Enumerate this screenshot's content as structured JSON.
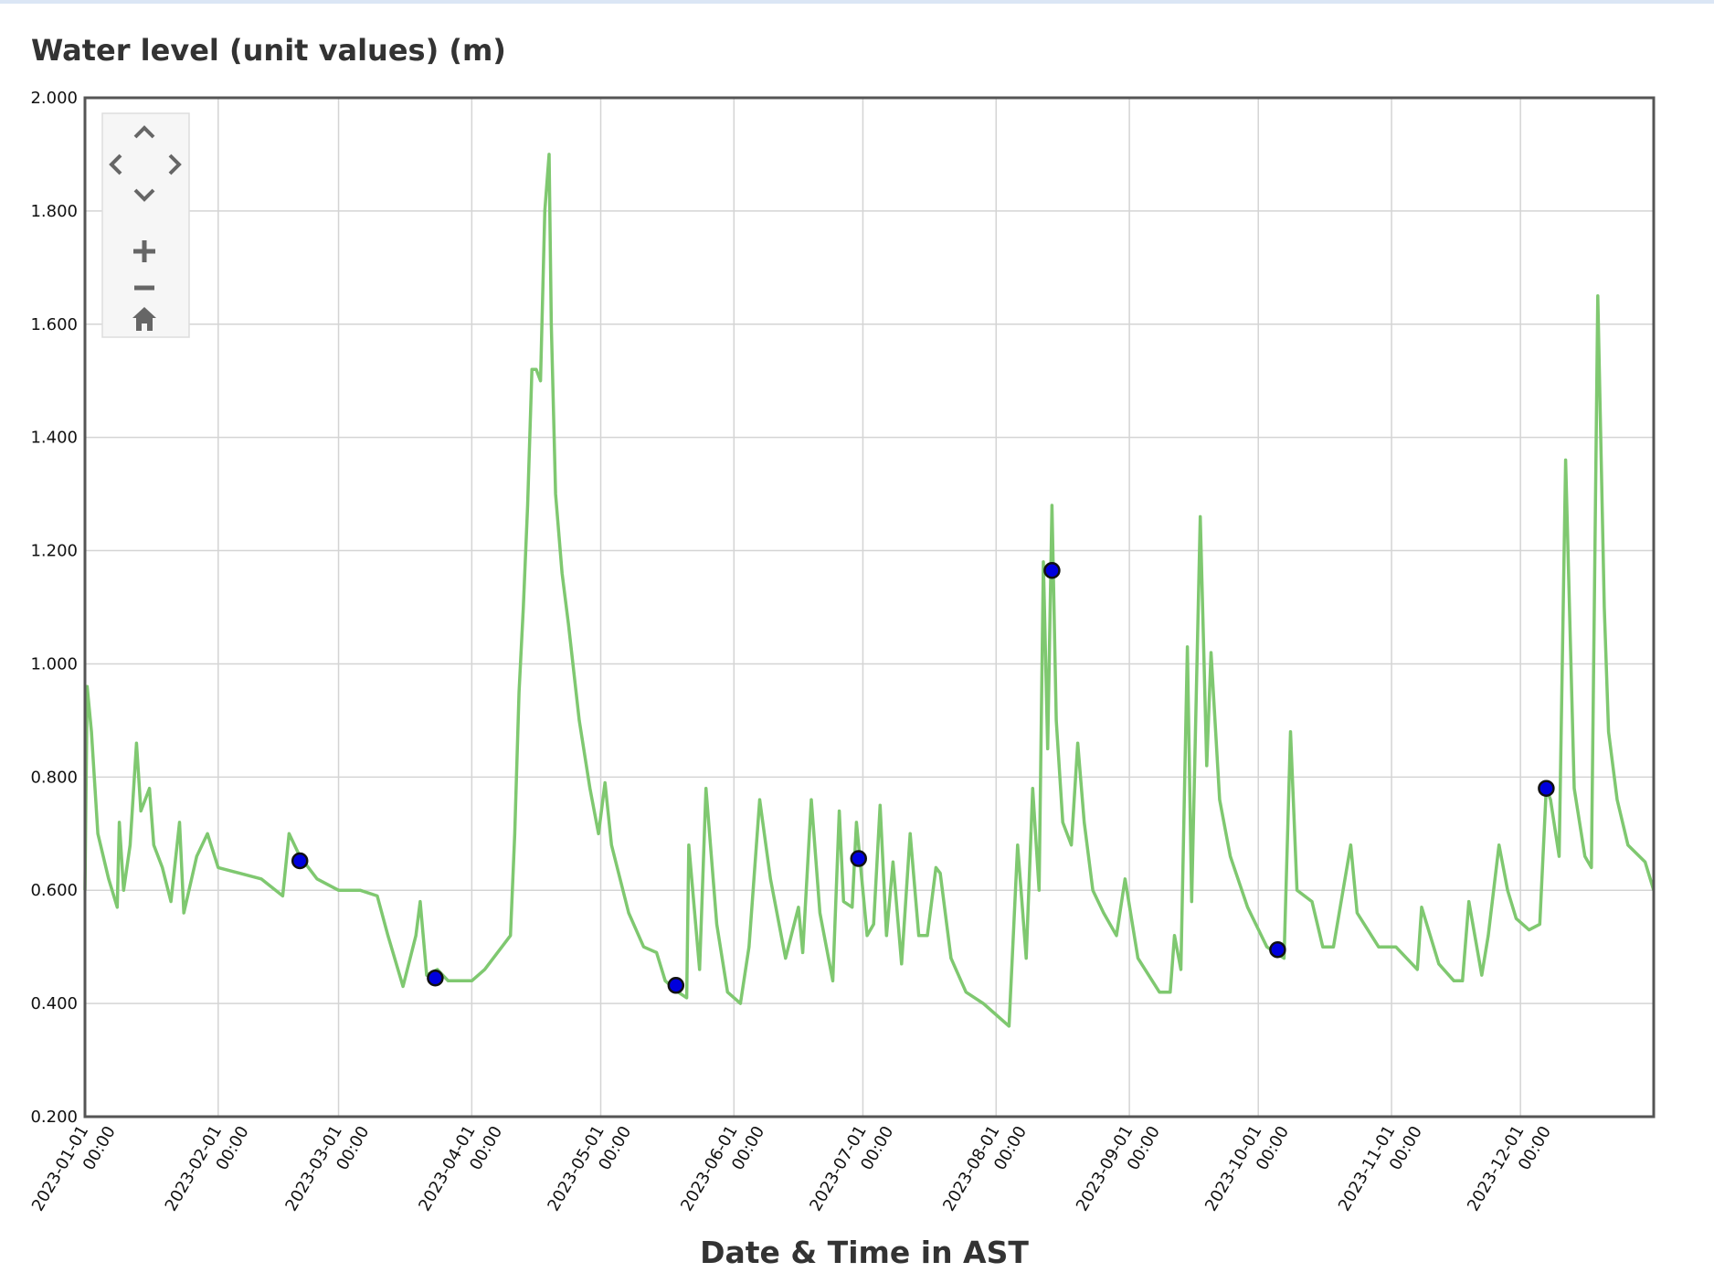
{
  "chart_data": {
    "type": "line",
    "title": "Water level (unit values) (m)",
    "x_label": "Date & Time in AST",
    "xlim": [
      "2023-01-01 00:00",
      "2024-01-01 00:00"
    ],
    "xticks": [
      "2023-01-01 00:00",
      "2023-02-01 00:00",
      "2023-03-01 00:00",
      "2023-04-01 00:00",
      "2023-05-01 00:00",
      "2023-06-01 00:00",
      "2023-07-01 00:00",
      "2023-08-01 00:00",
      "2023-09-01 00:00",
      "2023-10-01 00:00",
      "2023-11-01 00:00",
      "2023-12-01 00:00"
    ],
    "ylim": [
      0.2,
      2.0
    ],
    "yticks": [
      {
        "value": 0.2,
        "label": "0.200"
      },
      {
        "value": 0.4,
        "label": "0.400"
      },
      {
        "value": 0.6,
        "label": "0.600"
      },
      {
        "value": 0.8,
        "label": "0.800"
      },
      {
        "value": 1.0,
        "label": "1.000"
      },
      {
        "value": 1.2,
        "label": "1.200"
      },
      {
        "value": 1.4,
        "label": "1.400"
      },
      {
        "value": 1.6,
        "label": "1.600"
      },
      {
        "value": 1.8,
        "label": "1.800"
      },
      {
        "value": 2.0,
        "label": "2.000"
      }
    ],
    "grid": true,
    "series": [
      {
        "type": "line",
        "color": "#7fc870",
        "x": [
          "2023-01-01 00:00",
          "2023-01-01 12:00",
          "2023-01-02 12:00",
          "2023-01-04 00:00",
          "2023-01-06 12:00",
          "2023-01-08 12:00",
          "2023-01-09 00:00",
          "2023-01-10 00:00",
          "2023-01-11 12:00",
          "2023-01-13 00:00",
          "2023-01-14 00:00",
          "2023-01-16 00:00",
          "2023-01-17 00:00",
          "2023-01-19 00:00",
          "2023-01-21 00:00",
          "2023-01-23 00:00",
          "2023-01-24 00:00",
          "2023-01-27 00:00",
          "2023-01-29 12:00",
          "2023-02-01 00:00",
          "2023-02-06 00:00",
          "2023-02-11 00:00",
          "2023-02-16 00:00",
          "2023-02-17 12:00",
          "2023-02-20 00:00",
          "2023-02-24 00:00",
          "2023-03-01 00:00",
          "2023-03-06 00:00",
          "2023-03-10 00:00",
          "2023-03-12 12:00",
          "2023-03-16 00:00",
          "2023-03-19 00:00",
          "2023-03-20 00:00",
          "2023-03-21 12:00",
          "2023-03-24 00:00",
          "2023-03-26 12:00",
          "2023-03-29 00:00",
          "2023-04-01 00:00",
          "2023-04-04 00:00",
          "2023-04-08 00:00",
          "2023-04-10 00:00",
          "2023-04-11 00:00",
          "2023-04-12 00:00",
          "2023-04-13 00:00",
          "2023-04-14 00:00",
          "2023-04-15 00:00",
          "2023-04-16 00:00",
          "2023-04-17 00:00",
          "2023-04-18 00:00",
          "2023-04-19 00:00",
          "2023-04-19 12:00",
          "2023-04-20 12:00",
          "2023-04-22 00:00",
          "2023-04-23 12:00",
          "2023-04-26 00:00",
          "2023-04-28 12:00",
          "2023-04-30 12:00",
          "2023-05-02 00:00",
          "2023-05-03 12:00",
          "2023-05-07 12:00",
          "2023-05-11 00:00",
          "2023-05-14 00:00",
          "2023-05-16 00:00",
          "2023-05-19 00:00",
          "2023-05-21 00:00",
          "2023-05-21 12:00",
          "2023-05-24 00:00",
          "2023-05-25 12:00",
          "2023-05-28 00:00",
          "2023-05-30 12:00",
          "2023-06-02 12:00",
          "2023-06-04 12:00",
          "2023-06-07 00:00",
          "2023-06-09 12:00",
          "2023-06-13 00:00",
          "2023-06-16 00:00",
          "2023-06-17 00:00",
          "2023-06-19 00:00",
          "2023-06-21 00:00",
          "2023-06-24 00:00",
          "2023-06-25 12:00",
          "2023-06-26 12:00",
          "2023-06-28 12:00",
          "2023-06-29 12:00",
          "2023-07-02 00:00",
          "2023-07-03 12:00",
          "2023-07-05 00:00",
          "2023-07-06 12:00",
          "2023-07-08 00:00",
          "2023-07-10 00:00",
          "2023-07-12 00:00",
          "2023-07-14 00:00",
          "2023-07-16 00:00",
          "2023-07-18 00:00",
          "2023-07-19 00:00",
          "2023-07-21 12:00",
          "2023-07-25 00:00",
          "2023-07-29 00:00",
          "2023-08-01 00:00",
          "2023-08-04 00:00",
          "2023-08-06 00:00",
          "2023-08-08 00:00",
          "2023-08-09 12:00",
          "2023-08-11 00:00",
          "2023-08-12 00:00",
          "2023-08-13 00:00",
          "2023-08-14 00:00",
          "2023-08-15 00:00",
          "2023-08-16 12:00",
          "2023-08-18 12:00",
          "2023-08-20 00:00",
          "2023-08-21 12:00",
          "2023-08-23 12:00",
          "2023-08-26 00:00",
          "2023-08-29 00:00",
          "2023-08-31 00:00",
          "2023-09-03 00:00",
          "2023-09-08 00:00",
          "2023-09-10 12:00",
          "2023-09-11 12:00",
          "2023-09-13 00:00",
          "2023-09-14 12:00",
          "2023-09-15 12:00",
          "2023-09-17 12:00",
          "2023-09-19 00:00",
          "2023-09-20 00:00",
          "2023-09-22 00:00",
          "2023-09-24 12:00",
          "2023-09-28 12:00",
          "2023-10-03 00:00",
          "2023-10-07 00:00",
          "2023-10-08 12:00",
          "2023-10-10 00:00",
          "2023-10-13 12:00",
          "2023-10-16 00:00",
          "2023-10-18 12:00",
          "2023-10-22 12:00",
          "2023-10-24 00:00",
          "2023-10-29 00:00",
          "2023-11-02 00:00",
          "2023-11-07 00:00",
          "2023-11-08 00:00",
          "2023-11-12 00:00",
          "2023-11-15 12:00",
          "2023-11-17 12:00",
          "2023-11-19 00:00",
          "2023-11-22 00:00",
          "2023-11-23 12:00",
          "2023-11-26 00:00",
          "2023-11-28 00:00",
          "2023-11-30 00:00",
          "2023-12-03 00:00",
          "2023-12-05 12:00",
          "2023-12-07 00:00",
          "2023-12-08 00:00",
          "2023-12-10 00:00",
          "2023-12-11 12:00",
          "2023-12-13 12:00",
          "2023-12-16 00:00",
          "2023-12-17 12:00",
          "2023-12-19 00:00",
          "2023-12-20 12:00",
          "2023-12-21 12:00",
          "2023-12-23 12:00",
          "2023-12-26 00:00",
          "2023-12-30 00:00",
          "2024-01-01 00:00"
        ],
        "values": [
          0.6,
          0.96,
          0.88,
          0.7,
          0.62,
          0.57,
          0.72,
          0.6,
          0.68,
          0.86,
          0.74,
          0.78,
          0.68,
          0.64,
          0.58,
          0.72,
          0.56,
          0.66,
          0.7,
          0.64,
          0.63,
          0.62,
          0.59,
          0.7,
          0.66,
          0.62,
          0.6,
          0.6,
          0.59,
          0.52,
          0.43,
          0.52,
          0.58,
          0.45,
          0.46,
          0.44,
          0.44,
          0.44,
          0.46,
          0.5,
          0.52,
          0.7,
          0.95,
          1.1,
          1.28,
          1.52,
          1.52,
          1.5,
          1.8,
          1.9,
          1.6,
          1.3,
          1.16,
          1.07,
          0.9,
          0.78,
          0.7,
          0.79,
          0.68,
          0.56,
          0.5,
          0.49,
          0.44,
          0.42,
          0.41,
          0.68,
          0.46,
          0.78,
          0.54,
          0.42,
          0.4,
          0.5,
          0.76,
          0.62,
          0.48,
          0.57,
          0.49,
          0.76,
          0.56,
          0.44,
          0.74,
          0.58,
          0.57,
          0.72,
          0.52,
          0.54,
          0.75,
          0.52,
          0.65,
          0.47,
          0.7,
          0.52,
          0.52,
          0.64,
          0.63,
          0.48,
          0.42,
          0.4,
          0.38,
          0.36,
          0.68,
          0.48,
          0.78,
          0.6,
          1.18,
          0.85,
          1.28,
          0.9,
          0.72,
          0.68,
          0.86,
          0.72,
          0.6,
          0.56,
          0.52,
          0.62,
          0.48,
          0.42,
          0.42,
          0.52,
          0.46,
          1.03,
          0.58,
          1.26,
          0.82,
          1.02,
          0.76,
          0.66,
          0.57,
          0.5,
          0.48,
          0.88,
          0.6,
          0.58,
          0.5,
          0.5,
          0.68,
          0.56,
          0.5,
          0.5,
          0.46,
          0.57,
          0.47,
          0.44,
          0.44,
          0.58,
          0.45,
          0.52,
          0.68,
          0.6,
          0.55,
          0.53,
          0.54,
          0.78,
          0.76,
          0.66,
          1.36,
          0.78,
          0.66,
          0.64,
          1.65,
          1.1,
          0.88,
          0.76,
          0.68,
          0.65,
          0.6
        ]
      },
      {
        "type": "scatter",
        "color": "#0000dd",
        "x": [
          "2023-02-20 00:00",
          "2023-03-23 12:00",
          "2023-05-18 12:00",
          "2023-06-30 00:00",
          "2023-08-14 00:00",
          "2023-10-05 12:00",
          "2023-12-07 00:00"
        ],
        "values": [
          0.652,
          0.445,
          0.432,
          0.656,
          1.165,
          0.495,
          0.78
        ]
      }
    ]
  }
}
